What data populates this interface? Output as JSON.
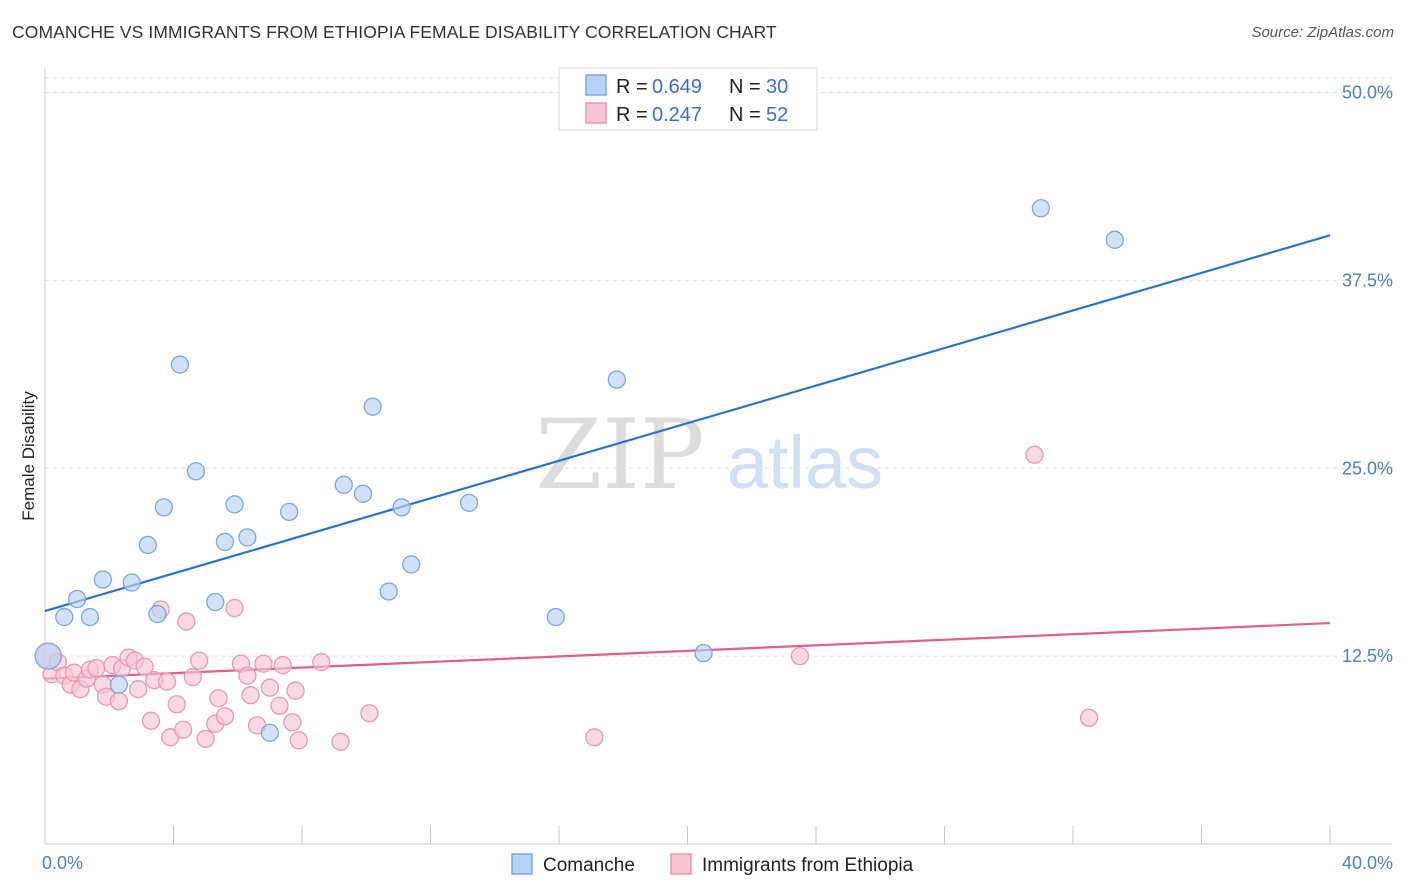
{
  "title": "COMANCHE VS IMMIGRANTS FROM ETHIOPIA FEMALE DISABILITY CORRELATION CHART",
  "source": "Source: ZipAtlas.com",
  "watermark": {
    "part1": "ZIP",
    "part2": "atlas"
  },
  "legend": {
    "rows": [
      {
        "r_label": "R = ",
        "r_value": "0.649",
        "n_label": "N = ",
        "n_value": "30"
      },
      {
        "r_label": "R = ",
        "r_value": "0.247",
        "n_label": "N = ",
        "n_value": "52"
      }
    ]
  },
  "colors": {
    "comanche_fill": "#b8d2f5",
    "comanche_stroke": "#7aa8e0",
    "comanche_line": "#2a72cc",
    "ethiopia_fill": "#f8c4d4",
    "ethiopia_stroke": "#e89ab4",
    "ethiopia_line": "#e0608c",
    "tick_text": "#4a7fd0"
  },
  "chart_data": {
    "type": "scatter",
    "title": "COMANCHE VS IMMIGRANTS FROM ETHIOPIA FEMALE DISABILITY CORRELATION CHART",
    "xlabel": "",
    "ylabel": "Female Disability",
    "xlim": [
      0,
      40
    ],
    "ylim": [
      0,
      51.5
    ],
    "x_tick_labels": [
      "0.0%",
      "40.0%"
    ],
    "y_ticks": [
      12.5,
      25.0,
      37.5,
      50.0
    ],
    "y_tick_labels": [
      "12.5%",
      "25.0%",
      "37.5%",
      "50.0%"
    ],
    "grid": true,
    "legend_position": "top-center",
    "series": [
      {
        "name": "Comanche",
        "r": 0.649,
        "n": 30,
        "trend": [
          [
            0,
            15.5
          ],
          [
            40,
            40.5
          ]
        ],
        "points": [
          [
            0.1,
            12.5
          ],
          [
            0.6,
            15.1
          ],
          [
            1.0,
            16.3
          ],
          [
            1.4,
            15.1
          ],
          [
            1.8,
            17.6
          ],
          [
            2.3,
            10.6
          ],
          [
            2.7,
            17.4
          ],
          [
            3.2,
            19.9
          ],
          [
            3.5,
            15.3
          ],
          [
            3.7,
            22.4
          ],
          [
            4.2,
            31.9
          ],
          [
            4.7,
            24.8
          ],
          [
            5.3,
            16.1
          ],
          [
            5.6,
            20.1
          ],
          [
            5.9,
            22.6
          ],
          [
            6.3,
            20.4
          ],
          [
            7.0,
            7.4
          ],
          [
            7.6,
            22.1
          ],
          [
            9.3,
            23.9
          ],
          [
            9.9,
            23.3
          ],
          [
            10.2,
            29.1
          ],
          [
            10.7,
            16.8
          ],
          [
            11.1,
            22.4
          ],
          [
            11.4,
            18.6
          ],
          [
            13.2,
            22.7
          ],
          [
            15.9,
            15.1
          ],
          [
            17.8,
            30.9
          ],
          [
            20.5,
            12.7
          ],
          [
            31.0,
            42.3
          ],
          [
            33.3,
            40.2
          ]
        ]
      },
      {
        "name": "Immigrants from Ethiopia",
        "r": 0.247,
        "n": 52,
        "trend": [
          [
            0,
            11.0
          ],
          [
            40,
            14.7
          ]
        ],
        "points": [
          [
            0.1,
            12.5
          ],
          [
            0.2,
            11.3
          ],
          [
            0.4,
            12.1
          ],
          [
            0.6,
            11.2
          ],
          [
            0.8,
            10.6
          ],
          [
            0.9,
            11.4
          ],
          [
            1.1,
            10.3
          ],
          [
            1.3,
            11.0
          ],
          [
            1.4,
            11.6
          ],
          [
            1.6,
            11.7
          ],
          [
            1.8,
            10.6
          ],
          [
            1.9,
            9.8
          ],
          [
            2.1,
            11.9
          ],
          [
            2.3,
            9.5
          ],
          [
            2.4,
            11.7
          ],
          [
            2.6,
            12.4
          ],
          [
            2.8,
            12.2
          ],
          [
            2.9,
            10.3
          ],
          [
            3.1,
            11.8
          ],
          [
            3.3,
            8.2
          ],
          [
            3.4,
            10.9
          ],
          [
            3.6,
            15.6
          ],
          [
            3.8,
            10.8
          ],
          [
            3.9,
            7.1
          ],
          [
            4.1,
            9.3
          ],
          [
            4.3,
            7.6
          ],
          [
            4.4,
            14.8
          ],
          [
            4.6,
            11.1
          ],
          [
            4.8,
            12.2
          ],
          [
            5.0,
            7.0
          ],
          [
            5.3,
            8.0
          ],
          [
            5.4,
            9.7
          ],
          [
            5.6,
            8.5
          ],
          [
            5.9,
            15.7
          ],
          [
            6.1,
            12.0
          ],
          [
            6.3,
            11.2
          ],
          [
            6.4,
            9.9
          ],
          [
            6.6,
            7.9
          ],
          [
            6.8,
            12.0
          ],
          [
            7.0,
            10.4
          ],
          [
            7.3,
            9.2
          ],
          [
            7.4,
            11.9
          ],
          [
            7.7,
            8.1
          ],
          [
            7.8,
            10.2
          ],
          [
            7.9,
            6.9
          ],
          [
            8.6,
            12.1
          ],
          [
            9.2,
            6.8
          ],
          [
            10.1,
            8.7
          ],
          [
            17.1,
            7.1
          ],
          [
            23.5,
            12.5
          ],
          [
            30.8,
            25.9
          ],
          [
            32.5,
            8.4
          ]
        ]
      }
    ]
  }
}
